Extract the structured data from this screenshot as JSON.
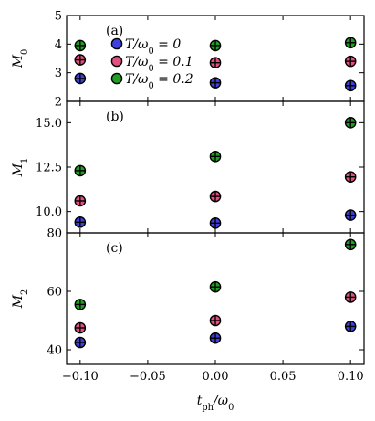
{
  "chart_data": {
    "type": "scatter",
    "x_label": "t_ph/ω_0",
    "x_ticks": [
      "−0.10",
      "−0.05",
      "0.00",
      "0.05",
      "0.10"
    ],
    "x_tick_values": [
      -0.1,
      -0.05,
      0.0,
      0.05,
      0.1
    ],
    "xlim": [
      -0.11,
      0.11
    ],
    "legend": {
      "placement": "inside panel (a), top",
      "entries": [
        {
          "label": "T/ω_0 = 0",
          "color": "#4040e0"
        },
        {
          "label": "T/ω_0 = 0.1",
          "color": "#e05080"
        },
        {
          "label": "T/ω_0 = 0.2",
          "color": "#20a020"
        }
      ]
    },
    "panels": [
      {
        "panel_label": "(a)",
        "ylabel": "M_0",
        "ylim": [
          2,
          5
        ],
        "y_ticks": [
          "2",
          "3",
          "4",
          "5"
        ],
        "y_tick_values": [
          2,
          3,
          4,
          5
        ],
        "series": [
          {
            "name": "T/ω_0 = 0",
            "x": [
              -0.1,
              0.0,
              0.1
            ],
            "y": [
              2.8,
              2.65,
              2.55
            ]
          },
          {
            "name": "T/ω_0 = 0.1",
            "x": [
              -0.1,
              0.0,
              0.1
            ],
            "y": [
              3.45,
              3.35,
              3.4
            ]
          },
          {
            "name": "T/ω_0 = 0.2",
            "x": [
              -0.1,
              0.0,
              0.1
            ],
            "y": [
              3.95,
              3.95,
              4.05
            ]
          }
        ]
      },
      {
        "panel_label": "(b)",
        "ylabel": "M_1",
        "ylim": [
          8.8,
          16.2
        ],
        "y_ticks": [
          "10.0",
          "12.5",
          "15.0"
        ],
        "y_tick_values": [
          10,
          12.5,
          15
        ],
        "series": [
          {
            "name": "T/ω_0 = 0",
            "x": [
              -0.1,
              0.0,
              0.1
            ],
            "y": [
              9.4,
              9.35,
              9.8
            ]
          },
          {
            "name": "T/ω_0 = 0.1",
            "x": [
              -0.1,
              0.0,
              0.1
            ],
            "y": [
              10.6,
              10.85,
              11.95
            ]
          },
          {
            "name": "T/ω_0 = 0.2",
            "x": [
              -0.1,
              0.0,
              0.1
            ],
            "y": [
              12.3,
              13.1,
              15.0
            ]
          }
        ]
      },
      {
        "panel_label": "(c)",
        "ylabel": "M_2",
        "ylim": [
          35,
          80
        ],
        "y_ticks": [
          "40",
          "60",
          "80"
        ],
        "y_tick_values": [
          40,
          60,
          80
        ],
        "series": [
          {
            "name": "T/ω_0 = 0",
            "x": [
              -0.1,
              0.0,
              0.1
            ],
            "y": [
              42.5,
              44,
              48
            ]
          },
          {
            "name": "T/ω_0 = 0.1",
            "x": [
              -0.1,
              0.0,
              0.1
            ],
            "y": [
              47.5,
              50,
              58
            ]
          },
          {
            "name": "T/ω_0 = 0.2",
            "x": [
              -0.1,
              0.0,
              0.1
            ],
            "y": [
              55.5,
              61.5,
              76
            ]
          }
        ]
      }
    ]
  }
}
